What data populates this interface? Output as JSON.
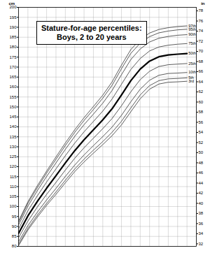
{
  "chart_data": {
    "type": "line",
    "title": "Stature-for-age percentiles:",
    "subtitle": "Boys, 2 to 20 years",
    "y_label": "cm",
    "y2_label": "in",
    "x": [
      2,
      3,
      4,
      5,
      6,
      7,
      8,
      9,
      10,
      11,
      12,
      13,
      14,
      15,
      16,
      17,
      18,
      19,
      20
    ],
    "series": [
      {
        "name": "97th",
        "color": "#333333",
        "values": [
          92.7,
          102.4,
          110.4,
          117.8,
          124.9,
          131.9,
          138.5,
          144.6,
          150.2,
          155.9,
          162.6,
          171.0,
          178.8,
          183.9,
          187.1,
          188.9,
          189.8,
          190.4,
          190.7
        ]
      },
      {
        "name": "95th",
        "color": "#333333",
        "values": [
          91.9,
          101.6,
          109.4,
          116.8,
          123.7,
          130.6,
          137.2,
          143.2,
          148.7,
          154.4,
          160.9,
          169.2,
          176.9,
          182.0,
          185.3,
          187.2,
          188.1,
          188.7,
          189.0
        ]
      },
      {
        "name": "90th",
        "color": "#333333",
        "values": [
          90.7,
          100.2,
          107.9,
          115.1,
          121.9,
          128.7,
          135.2,
          141.1,
          146.4,
          151.9,
          158.3,
          166.2,
          173.8,
          179.1,
          182.6,
          184.5,
          185.4,
          186.0,
          186.3
        ]
      },
      {
        "name": "75th",
        "color": "#333333",
        "values": [
          88.7,
          97.9,
          105.3,
          112.3,
          118.9,
          125.5,
          131.8,
          137.5,
          142.7,
          147.9,
          154.0,
          161.4,
          168.8,
          174.3,
          178.1,
          180.1,
          181.0,
          181.5,
          181.8
        ]
      },
      {
        "name": "50th",
        "color": "#000000",
        "values": [
          86.5,
          95.3,
          102.5,
          109.2,
          115.5,
          121.9,
          128.0,
          133.5,
          138.5,
          143.5,
          149.1,
          156.0,
          163.2,
          169.0,
          173.0,
          175.2,
          176.1,
          176.5,
          176.8
        ]
      },
      {
        "name": "25th",
        "color": "#333333",
        "values": [
          84.3,
          92.7,
          99.7,
          106.1,
          112.1,
          118.3,
          124.2,
          129.5,
          134.3,
          139.1,
          144.2,
          150.6,
          157.6,
          163.7,
          167.9,
          170.3,
          171.2,
          171.5,
          171.8
        ]
      },
      {
        "name": "10th",
        "color": "#333333",
        "values": [
          82.3,
          90.4,
          97.1,
          103.3,
          109.1,
          115.1,
          120.8,
          125.9,
          130.6,
          135.1,
          139.9,
          145.8,
          152.6,
          158.9,
          163.4,
          165.9,
          166.8,
          167.0,
          167.3
        ]
      },
      {
        "name": "5th",
        "color": "#333333",
        "values": [
          81.1,
          89.0,
          95.6,
          101.6,
          107.3,
          113.2,
          118.8,
          123.8,
          128.3,
          132.6,
          137.3,
          142.8,
          149.5,
          156.0,
          160.7,
          163.2,
          164.1,
          164.3,
          164.6
        ]
      },
      {
        "name": "3rd",
        "color": "#333333",
        "values": [
          80.3,
          88.2,
          94.6,
          100.6,
          106.1,
          111.9,
          117.5,
          122.4,
          126.8,
          131.1,
          135.6,
          141.0,
          147.6,
          154.1,
          158.9,
          161.5,
          162.4,
          162.6,
          162.9
        ]
      }
    ],
    "xlim": [
      2,
      21
    ],
    "xticks": [
      2,
      3,
      4,
      5,
      6,
      7,
      8,
      9,
      10,
      11,
      12,
      13,
      14,
      15,
      16,
      17,
      18,
      19,
      20,
      21
    ],
    "ylim": [
      80,
      200
    ],
    "yticks": [
      80,
      85,
      90,
      95,
      100,
      105,
      110,
      115,
      120,
      125,
      130,
      135,
      140,
      145,
      150,
      155,
      160,
      165,
      170,
      175,
      180,
      185,
      190,
      195,
      200
    ],
    "y2lim": [
      31.5,
      78.7
    ],
    "y2ticks": [
      32,
      34,
      36,
      38,
      40,
      42,
      44,
      46,
      48,
      50,
      52,
      54,
      56,
      58,
      60,
      62,
      64,
      66,
      68,
      70,
      72,
      74,
      76,
      78
    ],
    "grid": true,
    "tick_labels": "y"
  }
}
